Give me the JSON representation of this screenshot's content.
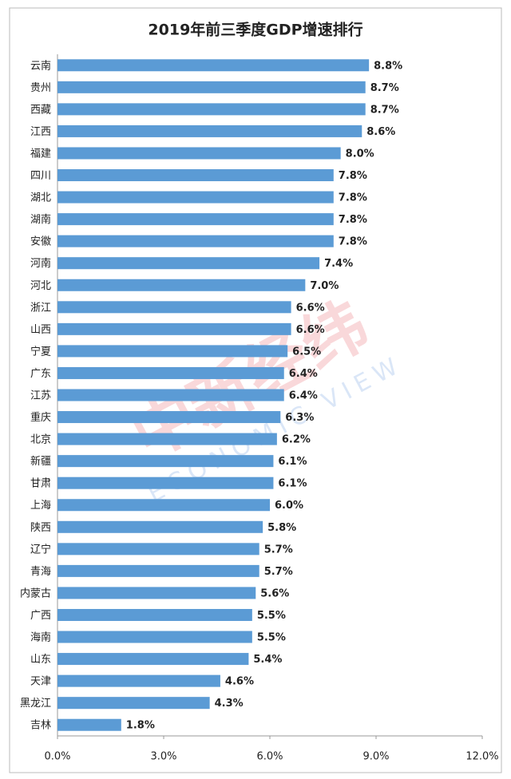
{
  "chart_data": {
    "type": "bar",
    "orientation": "horizontal",
    "title": "2019年前三季度GDP增速排行",
    "categories": [
      "云南",
      "贵州",
      "西藏",
      "江西",
      "福建",
      "四川",
      "湖北",
      "湖南",
      "安徽",
      "河南",
      "河北",
      "浙江",
      "山西",
      "宁夏",
      "广东",
      "江苏",
      "重庆",
      "北京",
      "新疆",
      "甘肃",
      "上海",
      "陕西",
      "辽宁",
      "青海",
      "内蒙古",
      "广西",
      "海南",
      "山东",
      "天津",
      "黑龙江",
      "吉林"
    ],
    "values": [
      8.8,
      8.7,
      8.7,
      8.6,
      8.0,
      7.8,
      7.8,
      7.8,
      7.8,
      7.4,
      7.0,
      6.6,
      6.6,
      6.5,
      6.4,
      6.4,
      6.3,
      6.2,
      6.1,
      6.1,
      6.0,
      5.8,
      5.7,
      5.7,
      5.6,
      5.5,
      5.5,
      5.4,
      4.6,
      4.3,
      1.8
    ],
    "value_labels": [
      "8.8%",
      "8.7%",
      "8.7%",
      "8.6%",
      "8.0%",
      "7.8%",
      "7.8%",
      "7.8%",
      "7.8%",
      "7.4%",
      "7.0%",
      "6.6%",
      "6.6%",
      "6.5%",
      "6.4%",
      "6.4%",
      "6.3%",
      "6.2%",
      "6.1%",
      "6.1%",
      "6.0%",
      "5.8%",
      "5.7%",
      "5.7%",
      "5.6%",
      "5.5%",
      "5.5%",
      "5.4%",
      "4.6%",
      "4.3%",
      "1.8%"
    ],
    "color": "#5b9bd5",
    "xlim": [
      0,
      12
    ],
    "xticks": [
      {
        "value": 0,
        "label": "0.0%"
      },
      {
        "value": 3,
        "label": "3.0%"
      },
      {
        "value": 6,
        "label": "6.0%"
      },
      {
        "value": 9,
        "label": "9.0%"
      },
      {
        "value": 12,
        "label": "12.0%"
      }
    ],
    "grid": false,
    "watermark": "中新经纬",
    "watermark_sub": "ECONOMIC VIEW"
  }
}
